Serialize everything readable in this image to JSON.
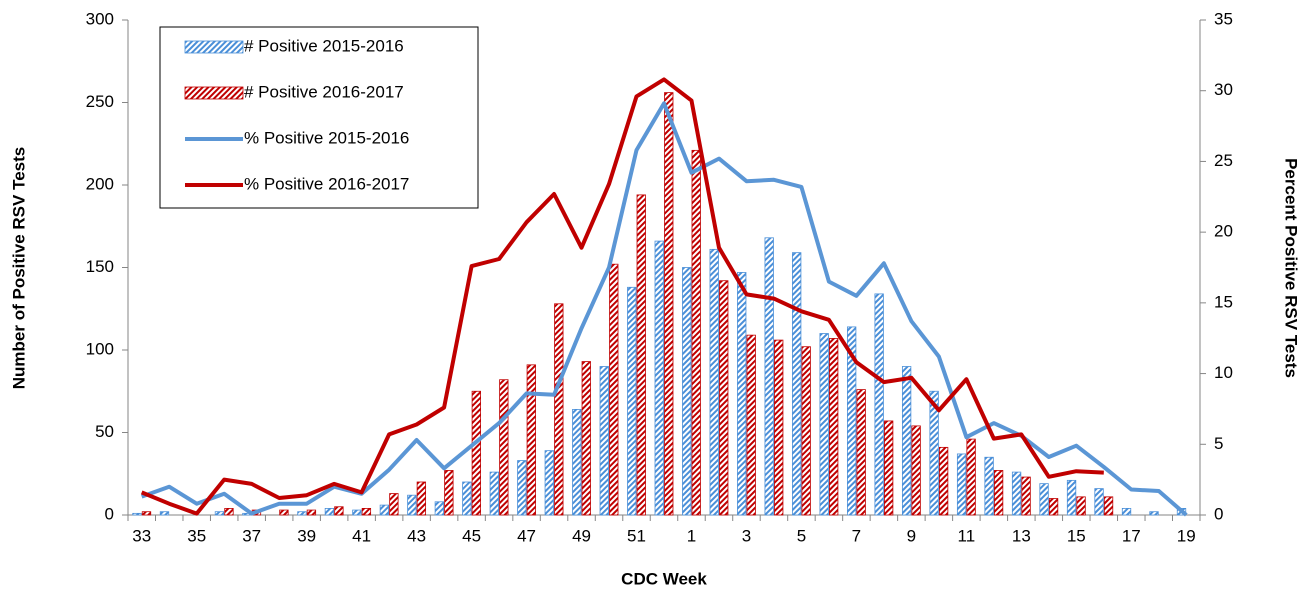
{
  "chart_data": {
    "type": "combo",
    "y_label": "Number of Positive RSV Tests",
    "y2_label": "Percent Positive RSV Tests",
    "x_label": "CDC Week",
    "categories": [
      "33",
      null,
      "35",
      null,
      "37",
      null,
      "39",
      null,
      "41",
      null,
      "43",
      null,
      "45",
      null,
      "47",
      null,
      "49",
      null,
      "51",
      null,
      "1",
      null,
      "3",
      null,
      "5",
      null,
      "7",
      null,
      "9",
      null,
      "11",
      null,
      "13",
      null,
      "15",
      null,
      "17",
      null,
      "19"
    ],
    "ylim": [
      0,
      300
    ],
    "yticks": [
      0,
      50,
      100,
      150,
      200,
      250,
      300
    ],
    "y2lim": [
      0,
      35
    ],
    "y2ticks": [
      0,
      5,
      10,
      15,
      20,
      25,
      30,
      35
    ],
    "legend": "upper left",
    "series": [
      {
        "name": "# Positive 2015-2016",
        "type": "bar",
        "color": "#4a8fd8",
        "values": [
          1,
          2,
          0,
          2,
          1,
          0,
          2,
          4,
          3,
          6,
          12,
          8,
          20,
          26,
          33,
          39,
          64,
          90,
          138,
          166,
          150,
          161,
          147,
          168,
          159,
          110,
          114,
          134,
          90,
          75,
          37,
          35,
          26,
          19,
          21,
          16,
          4,
          2,
          4
        ]
      },
      {
        "name": "# Positive 2016-2017",
        "type": "bar",
        "color": "#c00000",
        "values": [
          2,
          0,
          0,
          4,
          3,
          3,
          3,
          5,
          4,
          13,
          20,
          27,
          75,
          82,
          91,
          128,
          93,
          152,
          194,
          256,
          221,
          142,
          109,
          106,
          102,
          107,
          76,
          57,
          54,
          41,
          46,
          27,
          23,
          10,
          11,
          11,
          null,
          null,
          null
        ]
      },
      {
        "name": "% Positive 2015-2016",
        "type": "line",
        "axis": "y2",
        "color": "#5b96d5",
        "values": [
          1.3,
          2.0,
          0.8,
          1.5,
          0.1,
          0.8,
          0.8,
          2.0,
          1.5,
          3.2,
          5.3,
          3.3,
          4.9,
          6.5,
          8.6,
          8.5,
          13.2,
          17.5,
          25.8,
          29.1,
          24.2,
          25.2,
          23.6,
          23.7,
          23.2,
          16.5,
          15.5,
          17.8,
          13.7,
          11.2,
          5.5,
          6.5,
          5.6,
          4.1,
          4.9,
          3.4,
          1.8,
          1.7,
          0
        ]
      },
      {
        "name": "% Positive 2016-2017",
        "type": "line",
        "axis": "y2",
        "color": "#c00000",
        "values": [
          1.6,
          0.8,
          0.1,
          2.5,
          2.2,
          1.2,
          1.4,
          2.2,
          1.6,
          5.7,
          6.4,
          7.6,
          17.6,
          18.1,
          20.7,
          22.7,
          18.9,
          23.4,
          29.6,
          30.8,
          29.3,
          18.9,
          15.6,
          15.3,
          14.4,
          13.8,
          10.8,
          9.4,
          9.7,
          7.4,
          9.6,
          5.4,
          5.7,
          2.7,
          3.1,
          3.0,
          null,
          null,
          null
        ]
      }
    ]
  }
}
